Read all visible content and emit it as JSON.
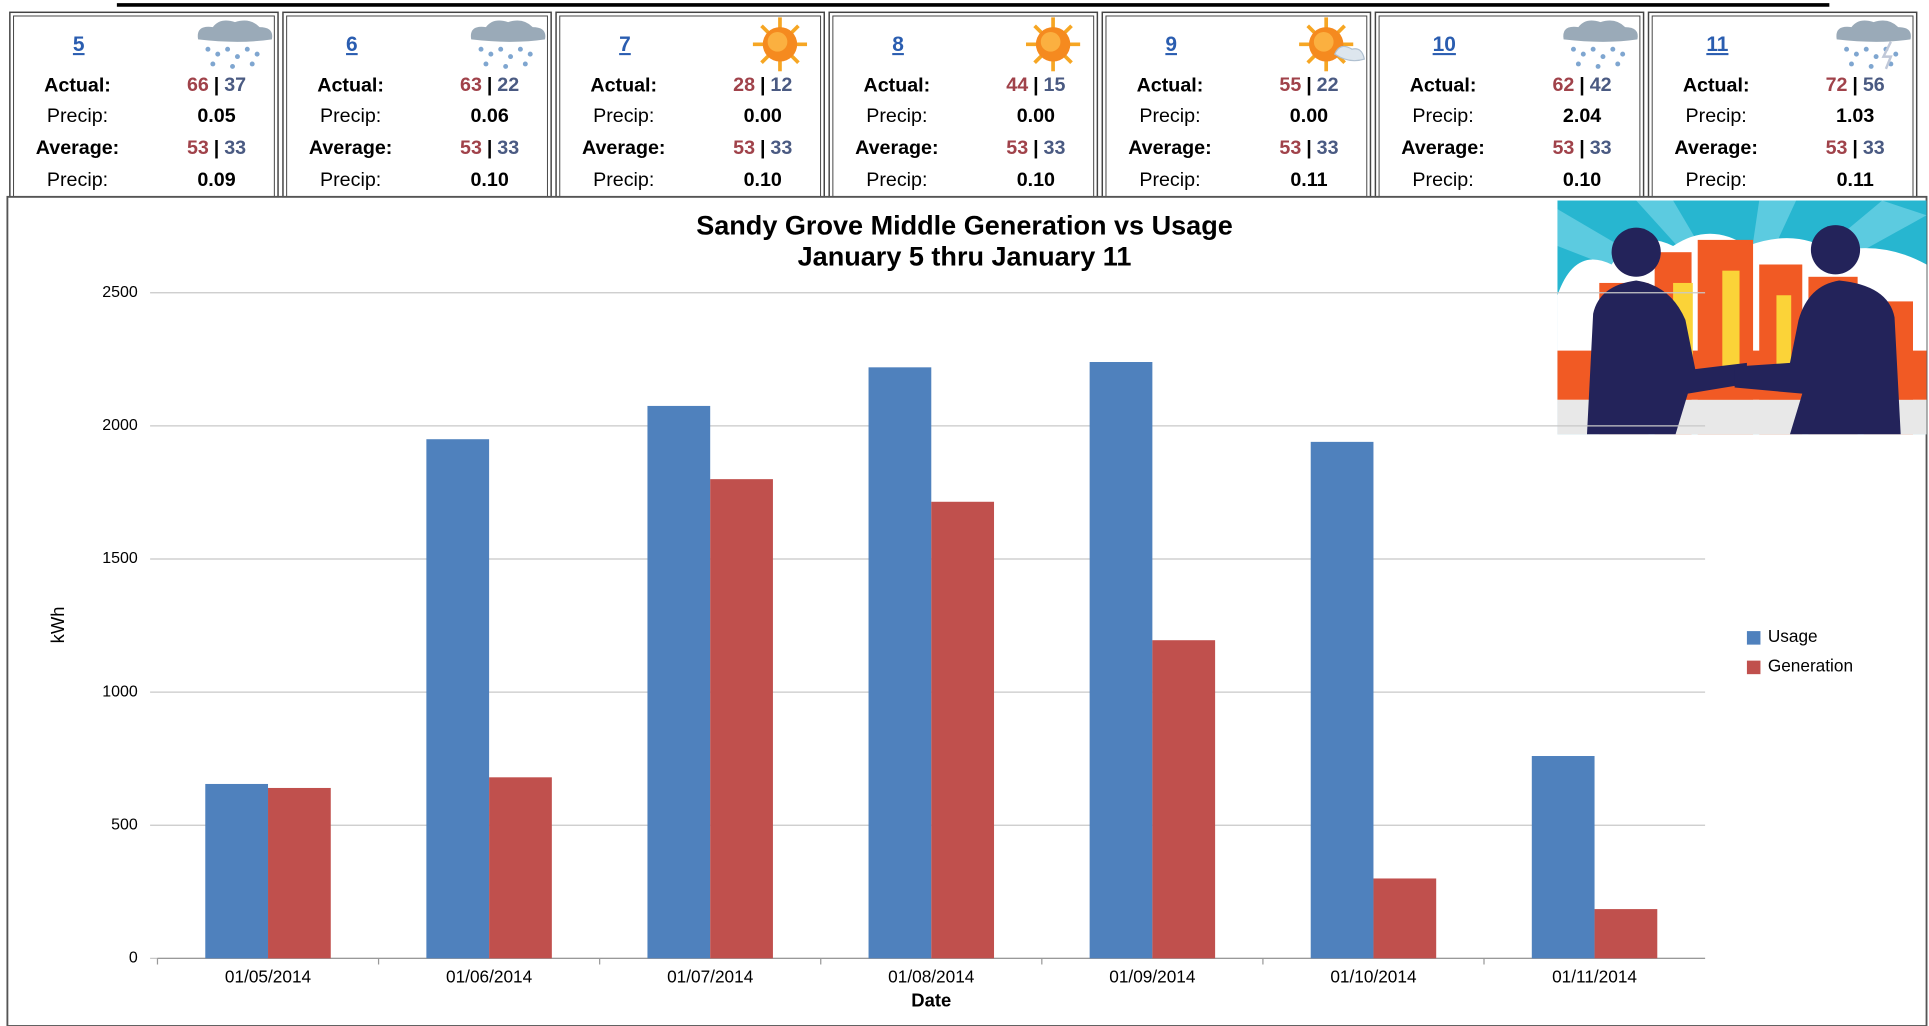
{
  "weather": {
    "labels": {
      "actual": "Actual:",
      "precip": "Precip:",
      "average": "Average:"
    },
    "separator": "|",
    "days": [
      {
        "day": "5",
        "actual_high": 66,
        "actual_low": 37,
        "actual_precip": "0.05",
        "average_high": 53,
        "average_low": 33,
        "average_precip": "0.09"
      },
      {
        "day": "6",
        "actual_high": 63,
        "actual_low": 22,
        "actual_precip": "0.06",
        "average_high": 53,
        "average_low": 33,
        "average_precip": "0.10"
      },
      {
        "day": "7",
        "actual_high": 28,
        "actual_low": 12,
        "actual_precip": "0.00",
        "average_high": 53,
        "average_low": 33,
        "average_precip": "0.10"
      },
      {
        "day": "8",
        "actual_high": 44,
        "actual_low": 15,
        "actual_precip": "0.00",
        "average_high": 53,
        "average_low": 33,
        "average_precip": "0.10"
      },
      {
        "day": "9",
        "actual_high": 55,
        "actual_low": 22,
        "actual_precip": "0.00",
        "average_high": 53,
        "average_low": 33,
        "average_precip": "0.11"
      },
      {
        "day": "10",
        "actual_high": 62,
        "actual_low": 42,
        "actual_precip": "2.04",
        "average_high": 53,
        "average_low": 33,
        "average_precip": "0.10"
      },
      {
        "day": "11",
        "actual_high": 72,
        "actual_low": 56,
        "actual_precip": "1.03",
        "average_high": 53,
        "average_low": 33,
        "average_precip": "0.11"
      }
    ]
  },
  "chart_data": {
    "type": "bar",
    "title": "Sandy Grove Middle Generation vs Usage",
    "subtitle": "January 5 thru January 11",
    "x_label": "Date",
    "y_label": "kWh",
    "categories": [
      "01/05/2014",
      "01/06/2014",
      "01/07/2014",
      "01/08/2014",
      "01/09/2014",
      "01/10/2014",
      "01/11/2014"
    ],
    "series": [
      {
        "name": "Usage",
        "color": "#4f81bd",
        "values": [
          655,
          1950,
          2075,
          2220,
          2240,
          1940,
          760
        ]
      },
      {
        "name": "Generation",
        "color": "#c0504d",
        "values": [
          640,
          680,
          1800,
          1715,
          1195,
          300,
          185
        ]
      }
    ],
    "ylim": [
      0,
      2500
    ],
    "yticks": [
      0,
      500,
      1000,
      1500,
      2000,
      2500
    ],
    "grid": true,
    "legend": "right"
  }
}
